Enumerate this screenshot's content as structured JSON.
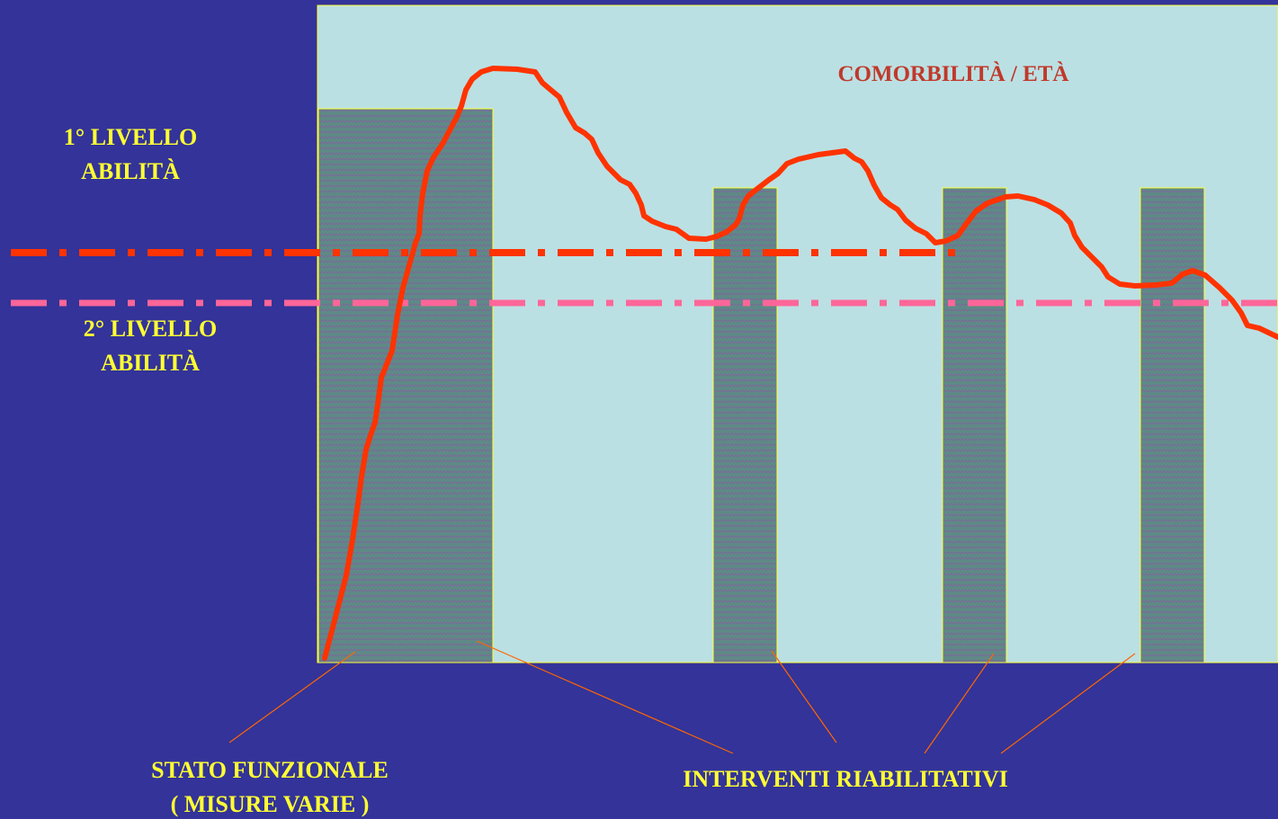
{
  "diagram": {
    "region_title": "COMORBILITÀ / ETÀ",
    "level_1": {
      "line1": "1° LIVELLO",
      "line2": "ABILITÀ"
    },
    "level_2": {
      "line1": "2° LIVELLO",
      "line2": "ABILITÀ"
    },
    "functional_status": {
      "line1": "STATO FUNZIONALE",
      "line2": "( MISURE  VARIE )"
    },
    "interventions": "INTERVENTI RIABILITATIVI"
  },
  "colors": {
    "background": "#333399",
    "plot_area": "#bbe0e3",
    "intervention_bar": "#5e8a86",
    "curve": "#ff3300",
    "level_1_line": "#ff3300",
    "level_2_line": "#ff6699",
    "label_text": "#ffff33",
    "title_text": "#c0392b",
    "connector": "#ff6600"
  }
}
